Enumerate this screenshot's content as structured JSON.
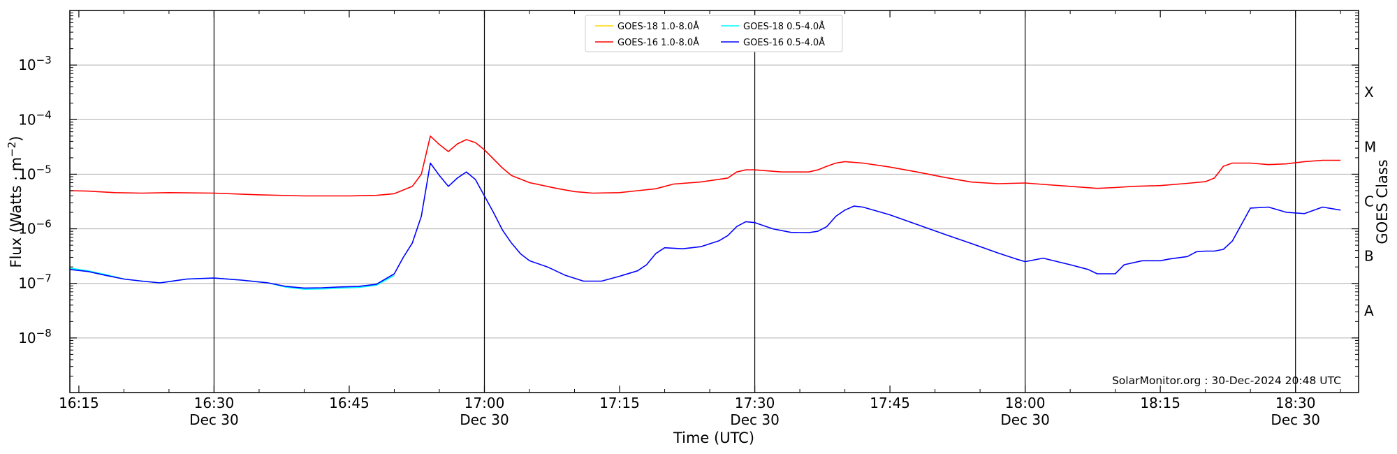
{
  "chart_data": {
    "type": "line",
    "title": "",
    "xlabel": "Time (UTC)",
    "ylabel": "Flux (Watts · m",
    "ylabel_sup": "−2",
    "ylabel_close": ")",
    "y2label": "GOES Class",
    "yscale": "log",
    "ylim": [
      1e-09,
      0.01
    ],
    "xlim": [
      "16:14",
      "18:37"
    ],
    "grid": "horizontal",
    "legend_position": "top-center",
    "x_ticks": [
      {
        "t": "16:15",
        "label": "16:15",
        "sub": ""
      },
      {
        "t": "16:30",
        "label": "16:30",
        "sub": "Dec 30"
      },
      {
        "t": "16:45",
        "label": "16:45",
        "sub": ""
      },
      {
        "t": "17:00",
        "label": "17:00",
        "sub": "Dec 30"
      },
      {
        "t": "17:15",
        "label": "17:15",
        "sub": ""
      },
      {
        "t": "17:30",
        "label": "17:30",
        "sub": "Dec 30"
      },
      {
        "t": "17:45",
        "label": "17:45",
        "sub": ""
      },
      {
        "t": "18:00",
        "label": "18:00",
        "sub": "Dec 30"
      },
      {
        "t": "18:15",
        "label": "18:15",
        "sub": ""
      },
      {
        "t": "18:30",
        "label": "18:30",
        "sub": "Dec 30"
      }
    ],
    "y_ticks": [
      {
        "value": 1e-08,
        "base": "10",
        "exp": "−8"
      },
      {
        "value": 1e-07,
        "base": "10",
        "exp": "−7"
      },
      {
        "value": 1e-06,
        "base": "10",
        "exp": "−6"
      },
      {
        "value": 1e-05,
        "base": "10",
        "exp": "−5"
      },
      {
        "value": 0.0001,
        "base": "10",
        "exp": "−4"
      },
      {
        "value": 0.001,
        "base": "10",
        "exp": "−3"
      }
    ],
    "class_labels": [
      {
        "label": "A",
        "value": 3.16e-08
      },
      {
        "label": "B",
        "value": 3.16e-07
      },
      {
        "label": "C",
        "value": 3.16e-06
      },
      {
        "label": "M",
        "value": 3.16e-05
      },
      {
        "label": "X",
        "value": 0.000316
      }
    ],
    "vlines": [
      "16:30",
      "17:00",
      "17:30",
      "18:00",
      "18:30"
    ],
    "annotation": "SolarMonitor.org : 30-Dec-2024 20:48 UTC",
    "series": [
      {
        "name": "GOES-18 1.0-8.0Å",
        "color": "#ffd700",
        "x": [],
        "values": []
      },
      {
        "name": "GOES-16 1.0-8.0Å",
        "color": "#ff0000",
        "x": [
          "16:14",
          "16:16",
          "16:19",
          "16:22",
          "16:25",
          "16:30",
          "16:35",
          "16:40",
          "16:45",
          "16:48",
          "16:50",
          "16:52",
          "16:53",
          "16:54",
          "16:55",
          "16:56",
          "16:57",
          "16:58",
          "16:59",
          "17:00",
          "17:02",
          "17:03",
          "17:05",
          "17:08",
          "17:10",
          "17:12",
          "17:15",
          "17:17",
          "17:19",
          "17:21",
          "17:24",
          "17:27",
          "17:28",
          "17:29",
          "17:30",
          "17:33",
          "17:36",
          "17:37",
          "17:38",
          "17:39",
          "17:40",
          "17:42",
          "17:45",
          "17:48",
          "17:51",
          "17:54",
          "17:57",
          "18:00",
          "18:02",
          "18:05",
          "18:08",
          "18:10",
          "18:12",
          "18:15",
          "18:18",
          "18:20",
          "18:21",
          "18:22",
          "18:23",
          "18:25",
          "18:27",
          "18:29",
          "18:31",
          "18:33",
          "18:35"
        ],
        "values": [
          5e-06,
          4.9e-06,
          4.6e-06,
          4.5e-06,
          4.6e-06,
          4.5e-06,
          4.2e-06,
          4e-06,
          4e-06,
          4.1e-06,
          4.4e-06,
          6e-06,
          1e-05,
          5e-05,
          3.5e-05,
          2.6e-05,
          3.6e-05,
          4.3e-05,
          3.8e-05,
          2.8e-05,
          1.3e-05,
          9.5e-06,
          7e-06,
          5.5e-06,
          4.8e-06,
          4.5e-06,
          4.6e-06,
          5e-06,
          5.4e-06,
          6.6e-06,
          7.2e-06,
          8.5e-06,
          1.1e-05,
          1.2e-05,
          1.2e-05,
          1.1e-05,
          1.1e-05,
          1.2e-05,
          1.4e-05,
          1.6e-05,
          1.7e-05,
          1.6e-05,
          1.35e-05,
          1.1e-05,
          8.8e-06,
          7.2e-06,
          6.7e-06,
          6.9e-06,
          6.5e-06,
          6e-06,
          5.5e-06,
          5.7e-06,
          6e-06,
          6.2e-06,
          6.8e-06,
          7.3e-06,
          8.5e-06,
          1.4e-05,
          1.6e-05,
          1.6e-05,
          1.5e-05,
          1.55e-05,
          1.7e-05,
          1.8e-05,
          1.8e-05
        ]
      },
      {
        "name": "GOES-18 0.5-4.0Å",
        "color": "#00ffff",
        "x": [
          "16:14",
          "16:16",
          "16:18",
          "16:20",
          "16:22",
          "16:24",
          "16:27",
          "16:30",
          "16:33",
          "16:36",
          "16:38",
          "16:40",
          "16:42",
          "16:44",
          "16:46",
          "16:48",
          "16:50"
        ],
        "values": [
          1.9e-07,
          1.7e-07,
          1.45e-07,
          1.2e-07,
          1.1e-07,
          1.02e-07,
          1.2e-07,
          1.25e-07,
          1.15e-07,
          1.02e-07,
          8.5e-08,
          7.8e-08,
          7.9e-08,
          8.2e-08,
          8.4e-08,
          9.2e-08,
          1.4e-07
        ]
      },
      {
        "name": "GOES-16 0.5-4.0Å",
        "color": "#0000ff",
        "x": [
          "16:14",
          "16:16",
          "16:18",
          "16:20",
          "16:22",
          "16:24",
          "16:27",
          "16:30",
          "16:33",
          "16:36",
          "16:38",
          "16:40",
          "16:42",
          "16:44",
          "16:46",
          "16:48",
          "16:50",
          "16:51",
          "16:52",
          "16:53",
          "16:54",
          "16:55",
          "16:56",
          "16:57",
          "16:58",
          "16:59",
          "17:00",
          "17:01",
          "17:02",
          "17:03",
          "17:04",
          "17:05",
          "17:07",
          "17:09",
          "17:11",
          "17:13",
          "17:15",
          "17:17",
          "17:18",
          "17:19",
          "17:20",
          "17:22",
          "17:24",
          "17:26",
          "17:27",
          "17:28",
          "17:29",
          "17:30",
          "17:32",
          "17:34",
          "17:36",
          "17:37",
          "17:38",
          "17:39",
          "17:40",
          "17:41",
          "17:42",
          "17:45",
          "17:48",
          "17:51",
          "17:54",
          "17:57",
          "17:59",
          "18:00",
          "18:02",
          "18:05",
          "18:07",
          "18:08",
          "18:10",
          "18:11",
          "18:13",
          "18:15",
          "18:16",
          "18:18",
          "18:19",
          "18:20",
          "18:21",
          "18:22",
          "18:23",
          "18:25",
          "18:27",
          "18:29",
          "18:31",
          "18:33",
          "18:35"
        ],
        "values": [
          1.8e-07,
          1.65e-07,
          1.4e-07,
          1.2e-07,
          1.1e-07,
          1.02e-07,
          1.2e-07,
          1.25e-07,
          1.15e-07,
          1.02e-07,
          8.8e-08,
          8.2e-08,
          8.3e-08,
          8.6e-08,
          8.8e-08,
          9.6e-08,
          1.5e-07,
          3e-07,
          5.5e-07,
          1.7e-06,
          1.6e-05,
          9.5e-06,
          6e-06,
          8.5e-06,
          1.1e-05,
          8e-06,
          4e-06,
          2e-06,
          9.5e-07,
          5.5e-07,
          3.5e-07,
          2.6e-07,
          2e-07,
          1.4e-07,
          1.1e-07,
          1.1e-07,
          1.35e-07,
          1.7e-07,
          2.2e-07,
          3.5e-07,
          4.5e-07,
          4.3e-07,
          4.7e-07,
          6e-07,
          7.5e-07,
          1.1e-06,
          1.35e-06,
          1.3e-06,
          1e-06,
          8.6e-07,
          8.5e-07,
          9e-07,
          1.1e-06,
          1.7e-06,
          2.2e-06,
          2.6e-06,
          2.5e-06,
          1.8e-06,
          1.2e-06,
          8e-07,
          5.4e-07,
          3.6e-07,
          2.8e-07,
          2.5e-07,
          2.9e-07,
          2.2e-07,
          1.8e-07,
          1.5e-07,
          1.5e-07,
          2.2e-07,
          2.6e-07,
          2.6e-07,
          2.8e-07,
          3.1e-07,
          3.8e-07,
          3.9e-07,
          3.9e-07,
          4.2e-07,
          6e-07,
          2.4e-06,
          2.5e-06,
          2e-06,
          1.9e-06,
          2.5e-06,
          2.2e-06
        ]
      }
    ]
  }
}
